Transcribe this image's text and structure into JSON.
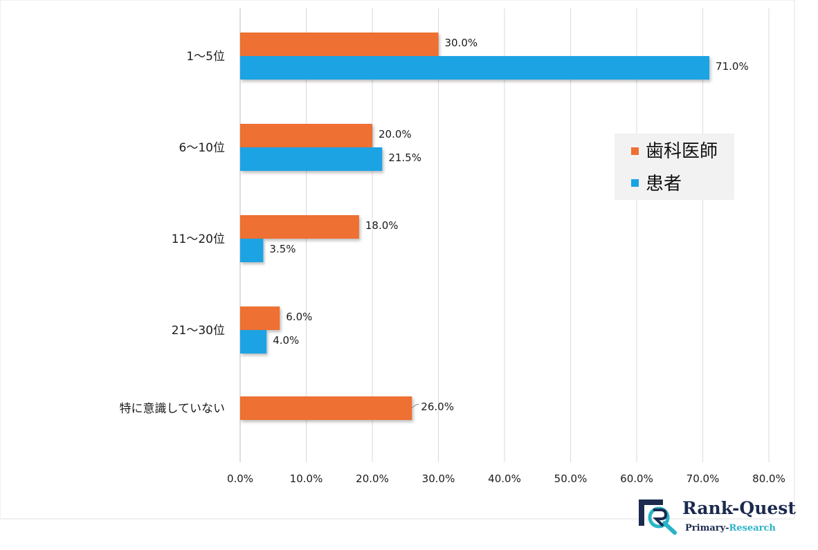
{
  "chart_data": {
    "type": "bar",
    "orientation": "horizontal",
    "categories": [
      "1～5位",
      "6～10位",
      "11～20位",
      "21～30位",
      "特に意識していない"
    ],
    "series": [
      {
        "name": "歯科医師",
        "color": "#ee7032",
        "values": [
          30.0,
          20.0,
          18.0,
          6.0,
          26.0
        ],
        "labels": [
          "30.0%",
          "20.0%",
          "18.0%",
          "6.0%",
          "26.0%"
        ]
      },
      {
        "name": "患者",
        "color": "#1aa3e3",
        "values": [
          71.0,
          21.5,
          3.5,
          4.0,
          null
        ],
        "labels": [
          "71.0%",
          "21.5%",
          "3.5%",
          "4.0%",
          ""
        ]
      }
    ],
    "xlim": [
      0,
      80
    ],
    "xticks": [
      0,
      10,
      20,
      30,
      40,
      50,
      60,
      70,
      80
    ],
    "xtick_labels": [
      "0.0%",
      "10.0%",
      "20.0%",
      "30.0%",
      "40.0%",
      "50.0%",
      "60.0%",
      "70.0%",
      "80.0%"
    ],
    "grid": "vertical",
    "legend_position": "right"
  },
  "logo": {
    "name_part1": "Rank-",
    "name_part2": "Quest",
    "sub_part1": "Primary-",
    "sub_part2": "Research"
  }
}
